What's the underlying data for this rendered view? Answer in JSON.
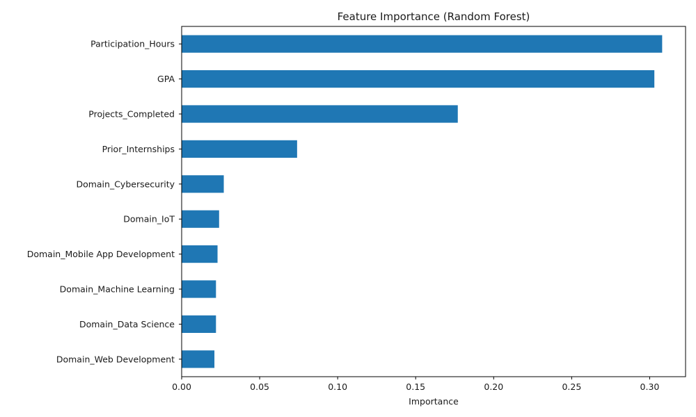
{
  "chart_data": {
    "type": "bar",
    "orientation": "horizontal",
    "title": "Feature Importance (Random Forest)",
    "xlabel": "Importance",
    "ylabel": "",
    "categories": [
      "Participation_Hours",
      "GPA",
      "Projects_Completed",
      "Prior_Internships",
      "Domain_Cybersecurity",
      "Domain_IoT",
      "Domain_Mobile App Development",
      "Domain_Machine Learning",
      "Domain_Data Science",
      "Domain_Web Development"
    ],
    "values": [
      0.308,
      0.303,
      0.177,
      0.074,
      0.027,
      0.024,
      0.023,
      0.022,
      0.022,
      0.021
    ],
    "xlim": [
      0,
      0.323
    ],
    "xticks": [
      0.0,
      0.05,
      0.1,
      0.15,
      0.2,
      0.25,
      0.3
    ],
    "xtick_labels": [
      "0.00",
      "0.05",
      "0.10",
      "0.15",
      "0.20",
      "0.25",
      "0.30"
    ],
    "grid": false,
    "legend": "none",
    "bar_color": "#1f77b4"
  }
}
